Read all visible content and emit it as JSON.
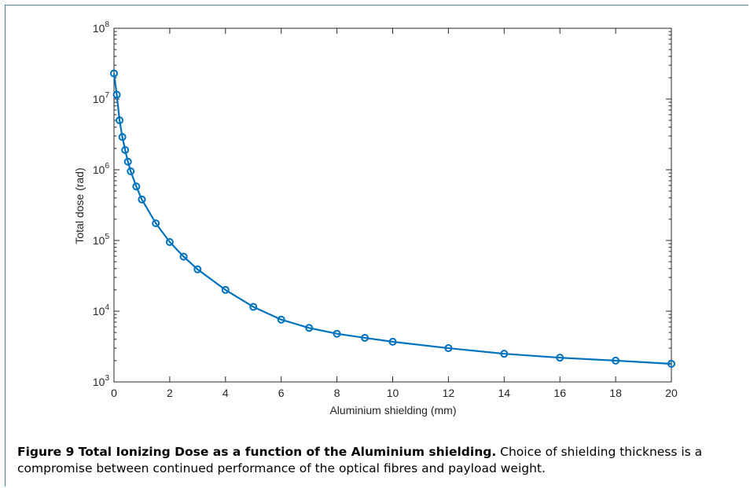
{
  "chart_data": {
    "type": "line",
    "xlabel": "Aluminium shielding (mm)",
    "ylabel": "Total dose (rad)",
    "xlim": [
      0,
      20
    ],
    "ylim": [
      1000,
      100000000
    ],
    "yscale": "log",
    "grid": false,
    "x_ticks": [
      "0",
      "2",
      "4",
      "6",
      "8",
      "10",
      "12",
      "14",
      "16",
      "18",
      "20"
    ],
    "y_ticks": [
      {
        "base": "10",
        "exp": "3"
      },
      {
        "base": "10",
        "exp": "4"
      },
      {
        "base": "10",
        "exp": "5"
      },
      {
        "base": "10",
        "exp": "6"
      },
      {
        "base": "10",
        "exp": "7"
      },
      {
        "base": "10",
        "exp": "8"
      }
    ],
    "series": [
      {
        "color": "#0072bd",
        "marker": "circle",
        "x": [
          0,
          0.1,
          0.2,
          0.3,
          0.4,
          0.5,
          0.6,
          0.8,
          1,
          1.5,
          2,
          2.5,
          3,
          4,
          5,
          6,
          7,
          8,
          9,
          10,
          12,
          14,
          16,
          18,
          20
        ],
        "y": [
          23000000,
          11500000,
          5000000,
          2900000,
          1900000,
          1300000,
          950000,
          580000,
          380000,
          175000,
          95000,
          59000,
          39000,
          20000,
          11500,
          7600,
          5800,
          4800,
          4200,
          3700,
          3000,
          2500,
          2200,
          2000,
          1800
        ]
      }
    ]
  },
  "caption": {
    "bold": "Figure 9  Total Ionizing Dose as a function of the Aluminium shielding.",
    "text": " Choice of shielding thickness is a compromise between continued performance of the optical fibres and payload weight."
  }
}
